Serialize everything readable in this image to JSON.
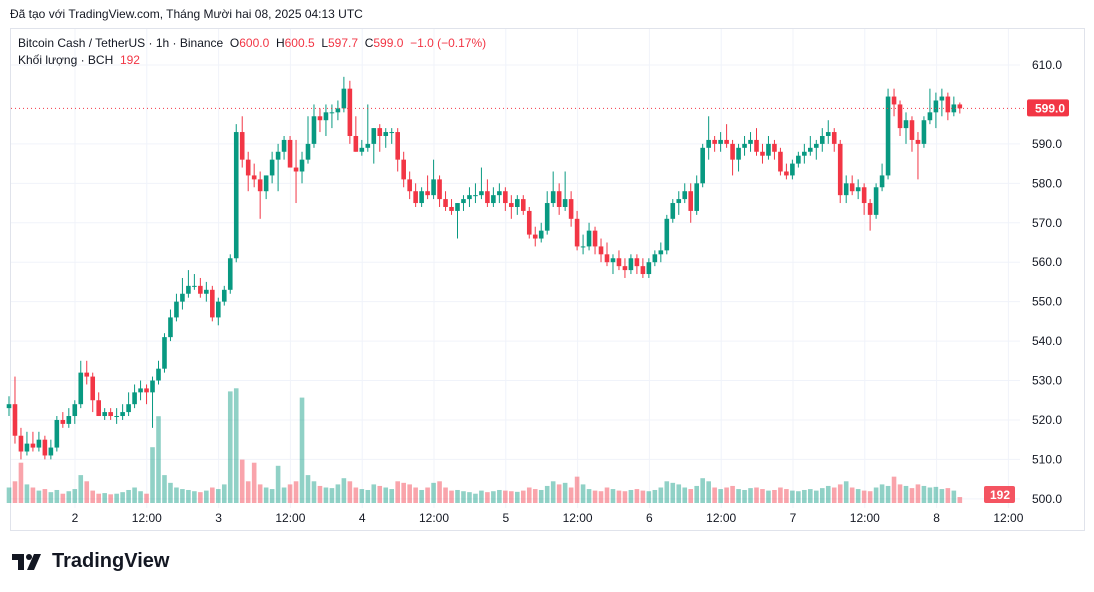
{
  "credit": "Đã tạo với TradingView.com, Tháng Mười hai 08, 2025 04:13 UTC",
  "legend": {
    "symbol": "Bitcoin Cash / TetherUS · 1h · Binance",
    "o_label": "O",
    "o": "600.0",
    "h_label": "H",
    "h": "600.5",
    "l_label": "L",
    "l": "597.7",
    "c_label": "C",
    "c": "599.0",
    "change": "−1.0 (−0.17%)",
    "volume_label": "Khối lượng · BCH",
    "volume": "192"
  },
  "logo": "TradingView",
  "colors": {
    "up": "#089981",
    "down": "#f23645",
    "grid": "#f0f3fa"
  },
  "chart_data": {
    "type": "candlestick",
    "interval": "1h",
    "price_axis": {
      "ticks": [
        "610.0",
        "590.0",
        "580.0",
        "570.0",
        "560.0",
        "550.0",
        "540.0",
        "530.0",
        "520.0",
        "510.0",
        "500.0"
      ],
      "ylim": [
        500,
        612
      ]
    },
    "time_axis": {
      "ticks": [
        "2",
        "12:00",
        "3",
        "12:00",
        "4",
        "12:00",
        "5",
        "12:00",
        "6",
        "12:00",
        "7",
        "12:00",
        "8",
        "12:00"
      ]
    },
    "last_price": "599.0",
    "last_volume": "192",
    "ohlc": [
      [
        523,
        526,
        521,
        524
      ],
      [
        524,
        531,
        514,
        516
      ],
      [
        516,
        518,
        510,
        512
      ],
      [
        512,
        517,
        511,
        514
      ],
      [
        514,
        517,
        512,
        513
      ],
      [
        513,
        517,
        512,
        515
      ],
      [
        515,
        516,
        510,
        511
      ],
      [
        511,
        515,
        510,
        513
      ],
      [
        513,
        521,
        512,
        520
      ],
      [
        520,
        522,
        518,
        519
      ],
      [
        519,
        523,
        518,
        521
      ],
      [
        521,
        525,
        519,
        524
      ],
      [
        524,
        535,
        523,
        532
      ],
      [
        532,
        535,
        529,
        531
      ],
      [
        531,
        532,
        522,
        525
      ],
      [
        525,
        527,
        521,
        521
      ],
      [
        521,
        523,
        520,
        522
      ],
      [
        522,
        523,
        520,
        521
      ],
      [
        521,
        523,
        519,
        521
      ],
      [
        521,
        524,
        520,
        522
      ],
      [
        522,
        527,
        521,
        524
      ],
      [
        524,
        529,
        523,
        527
      ],
      [
        527,
        530,
        525,
        528
      ],
      [
        528,
        529,
        524,
        527
      ],
      [
        527,
        531,
        518,
        530
      ],
      [
        530,
        535,
        529,
        533
      ],
      [
        533,
        542,
        532,
        541
      ],
      [
        541,
        548,
        540,
        546
      ],
      [
        546,
        552,
        545,
        550
      ],
      [
        550,
        556,
        548,
        552
      ],
      [
        552,
        558,
        551,
        554
      ],
      [
        554,
        557,
        553,
        554
      ],
      [
        554,
        556,
        551,
        552
      ],
      [
        552,
        555,
        550,
        553
      ],
      [
        553,
        554,
        545,
        546
      ],
      [
        546,
        551,
        544,
        550
      ],
      [
        550,
        554,
        549,
        553
      ],
      [
        553,
        562,
        552,
        561
      ],
      [
        561,
        595,
        560,
        593
      ],
      [
        593,
        597,
        584,
        586
      ],
      [
        586,
        588,
        578,
        582
      ],
      [
        582,
        585,
        579,
        581
      ],
      [
        581,
        583,
        571,
        578
      ],
      [
        578,
        582,
        576,
        582
      ],
      [
        582,
        588,
        580,
        586
      ],
      [
        586,
        590,
        578,
        588
      ],
      [
        588,
        592,
        586,
        591
      ],
      [
        591,
        592,
        584,
        584
      ],
      [
        584,
        591,
        575,
        583
      ],
      [
        583,
        588,
        580,
        586
      ],
      [
        586,
        597,
        585,
        590
      ],
      [
        590,
        600,
        589,
        597
      ],
      [
        597,
        599,
        593,
        596
      ],
      [
        596,
        600,
        592,
        598
      ],
      [
        598,
        600,
        594,
        598
      ],
      [
        598,
        601,
        596,
        599
      ],
      [
        599,
        607,
        598,
        604
      ],
      [
        604,
        606,
        590,
        592
      ],
      [
        592,
        597,
        588,
        588
      ],
      [
        588,
        591,
        587,
        589
      ],
      [
        589,
        600,
        588,
        590
      ],
      [
        590,
        594,
        585,
        594
      ],
      [
        594,
        595,
        588,
        592
      ],
      [
        592,
        594,
        589,
        593
      ],
      [
        593,
        594,
        590,
        593
      ],
      [
        593,
        594,
        583,
        586
      ],
      [
        586,
        588,
        579,
        581
      ],
      [
        581,
        583,
        576,
        578
      ],
      [
        578,
        580,
        574,
        575
      ],
      [
        575,
        579,
        574,
        578
      ],
      [
        578,
        582,
        576,
        577
      ],
      [
        577,
        586,
        576,
        581
      ],
      [
        581,
        582,
        574,
        576
      ],
      [
        576,
        578,
        573,
        574
      ],
      [
        574,
        576,
        572,
        573
      ],
      [
        573,
        575,
        566,
        575
      ],
      [
        575,
        577,
        573,
        576
      ],
      [
        576,
        579,
        574,
        577
      ],
      [
        577,
        580,
        575,
        577
      ],
      [
        577,
        584,
        576,
        578
      ],
      [
        578,
        581,
        574,
        575
      ],
      [
        575,
        579,
        574,
        577
      ],
      [
        577,
        580,
        575,
        578
      ],
      [
        578,
        579,
        573,
        575
      ],
      [
        575,
        577,
        571,
        574
      ],
      [
        574,
        577,
        572,
        576
      ],
      [
        576,
        577,
        572,
        573
      ],
      [
        573,
        574,
        566,
        567
      ],
      [
        567,
        569,
        564,
        566
      ],
      [
        566,
        570,
        565,
        568
      ],
      [
        568,
        578,
        567,
        575
      ],
      [
        575,
        583,
        574,
        578
      ],
      [
        578,
        580,
        572,
        574
      ],
      [
        574,
        583,
        573,
        576
      ],
      [
        576,
        578,
        569,
        571
      ],
      [
        571,
        573,
        563,
        564
      ],
      [
        564,
        567,
        562,
        564
      ],
      [
        564,
        570,
        563,
        568
      ],
      [
        568,
        569,
        562,
        564
      ],
      [
        564,
        566,
        560,
        562
      ],
      [
        562,
        565,
        559,
        560
      ],
      [
        560,
        562,
        557,
        561
      ],
      [
        561,
        563,
        558,
        559
      ],
      [
        559,
        561,
        556,
        558
      ],
      [
        558,
        562,
        557,
        561
      ],
      [
        561,
        562,
        557,
        559
      ],
      [
        559,
        561,
        556,
        557
      ],
      [
        557,
        561,
        556,
        560
      ],
      [
        560,
        563,
        559,
        562
      ],
      [
        562,
        565,
        560,
        563
      ],
      [
        563,
        572,
        562,
        571
      ],
      [
        571,
        576,
        570,
        575
      ],
      [
        575,
        578,
        572,
        576
      ],
      [
        576,
        580,
        575,
        578
      ],
      [
        578,
        580,
        570,
        573
      ],
      [
        573,
        582,
        572,
        580
      ],
      [
        580,
        590,
        579,
        589
      ],
      [
        589,
        597,
        586,
        591
      ],
      [
        591,
        592,
        588,
        590
      ],
      [
        590,
        593,
        588,
        591
      ],
      [
        591,
        595,
        589,
        590
      ],
      [
        590,
        591,
        582,
        586
      ],
      [
        586,
        590,
        583,
        589
      ],
      [
        589,
        592,
        587,
        590
      ],
      [
        590,
        593,
        588,
        591
      ],
      [
        591,
        594,
        587,
        588
      ],
      [
        588,
        590,
        585,
        587
      ],
      [
        587,
        592,
        586,
        590
      ],
      [
        590,
        591,
        586,
        588
      ],
      [
        588,
        589,
        582,
        583
      ],
      [
        583,
        585,
        581,
        582
      ],
      [
        582,
        586,
        581,
        585
      ],
      [
        585,
        588,
        584,
        587
      ],
      [
        587,
        590,
        585,
        588
      ],
      [
        588,
        592,
        587,
        589
      ],
      [
        589,
        591,
        586,
        590
      ],
      [
        590,
        594,
        588,
        592
      ],
      [
        592,
        596,
        590,
        593
      ],
      [
        593,
        594,
        588,
        590
      ],
      [
        590,
        591,
        575,
        577
      ],
      [
        577,
        582,
        575,
        580
      ],
      [
        580,
        582,
        577,
        578
      ],
      [
        578,
        581,
        576,
        579
      ],
      [
        579,
        580,
        572,
        575
      ],
      [
        575,
        576,
        568,
        572
      ],
      [
        572,
        580,
        571,
        579
      ],
      [
        579,
        585,
        578,
        582
      ],
      [
        582,
        604,
        581,
        602
      ],
      [
        602,
        604,
        597,
        600
      ],
      [
        600,
        601,
        592,
        594
      ],
      [
        594,
        598,
        590,
        596
      ],
      [
        596,
        597,
        588,
        591
      ],
      [
        591,
        593,
        581,
        590
      ],
      [
        590,
        597,
        589,
        596
      ],
      [
        596,
        604,
        595,
        598
      ],
      [
        598,
        603,
        594,
        601
      ],
      [
        601,
        604,
        597,
        602
      ],
      [
        602,
        603,
        596,
        598
      ],
      [
        598,
        602,
        597,
        600
      ],
      [
        600,
        600.5,
        597.7,
        599
      ]
    ],
    "volume": [
      500,
      700,
      1300,
      600,
      500,
      400,
      450,
      350,
      420,
      300,
      380,
      450,
      900,
      700,
      400,
      300,
      320,
      280,
      300,
      350,
      420,
      500,
      380,
      300,
      1800,
      2800,
      900,
      650,
      500,
      450,
      420,
      380,
      350,
      400,
      500,
      450,
      600,
      3600,
      3700,
      1400,
      700,
      1300,
      600,
      500,
      450,
      1200,
      500,
      600,
      700,
      3400,
      900,
      700,
      550,
      500,
      480,
      600,
      800,
      700,
      500,
      450,
      420,
      600,
      550,
      500,
      450,
      700,
      650,
      600,
      500,
      420,
      500,
      650,
      700,
      500,
      400,
      420,
      380,
      350,
      300,
      400,
      350,
      380,
      420,
      400,
      380,
      360,
      400,
      500,
      450,
      420,
      550,
      700,
      600,
      650,
      500,
      850,
      600,
      450,
      400,
      380,
      500,
      450,
      400,
      380,
      420,
      450,
      400,
      380,
      420,
      500,
      700,
      650,
      600,
      500,
      450,
      550,
      800,
      700,
      500,
      450,
      500,
      550,
      450,
      420,
      480,
      500,
      450,
      400,
      420,
      500,
      450,
      400,
      380,
      420,
      450,
      400,
      480,
      550,
      500,
      600,
      700,
      500,
      450,
      400,
      380,
      500,
      600,
      550,
      850,
      600,
      550,
      480,
      600,
      550,
      500,
      520,
      450,
      480,
      400,
      192
    ]
  }
}
